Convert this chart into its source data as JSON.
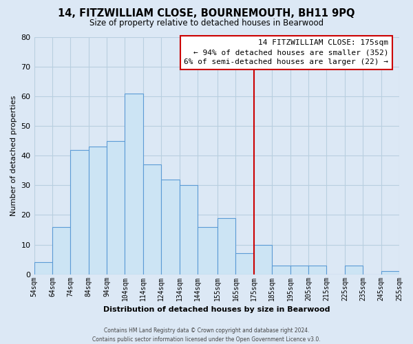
{
  "title": "14, FITZWILLIAM CLOSE, BOURNEMOUTH, BH11 9PQ",
  "subtitle": "Size of property relative to detached houses in Bearwood",
  "xlabel": "Distribution of detached houses by size in Bearwood",
  "ylabel": "Number of detached properties",
  "bin_edges": [
    54,
    64,
    74,
    84,
    94,
    104,
    114,
    124,
    134,
    144,
    155,
    165,
    175,
    185,
    195,
    205,
    215,
    225,
    235,
    245,
    255
  ],
  "bin_counts": [
    4,
    16,
    42,
    43,
    45,
    61,
    37,
    32,
    30,
    16,
    19,
    7,
    10,
    3,
    3,
    3,
    0,
    3,
    0,
    1
  ],
  "bar_color": "#cce4f4",
  "bar_edge_color": "#5b9bd5",
  "vline_x": 175,
  "vline_color": "#cc0000",
  "ylim": [
    0,
    80
  ],
  "yticks": [
    0,
    10,
    20,
    30,
    40,
    50,
    60,
    70,
    80
  ],
  "annotation_title": "14 FITZWILLIAM CLOSE: 175sqm",
  "annotation_line1": "← 94% of detached houses are smaller (352)",
  "annotation_line2": "6% of semi-detached houses are larger (22) →",
  "annotation_box_color": "#ffffff",
  "annotation_box_edge": "#cc0000",
  "footer1": "Contains HM Land Registry data © Crown copyright and database right 2024.",
  "footer2": "Contains public sector information licensed under the Open Government Licence v3.0.",
  "tick_labels": [
    "54sqm",
    "64sqm",
    "74sqm",
    "84sqm",
    "94sqm",
    "104sqm",
    "114sqm",
    "124sqm",
    "134sqm",
    "144sqm",
    "155sqm",
    "165sqm",
    "175sqm",
    "185sqm",
    "195sqm",
    "205sqm",
    "215sqm",
    "225sqm",
    "235sqm",
    "245sqm",
    "255sqm"
  ],
  "background_color": "#dce8f5",
  "plot_bg_color": "#dce8f5",
  "grid_color": "#b8cfe0"
}
